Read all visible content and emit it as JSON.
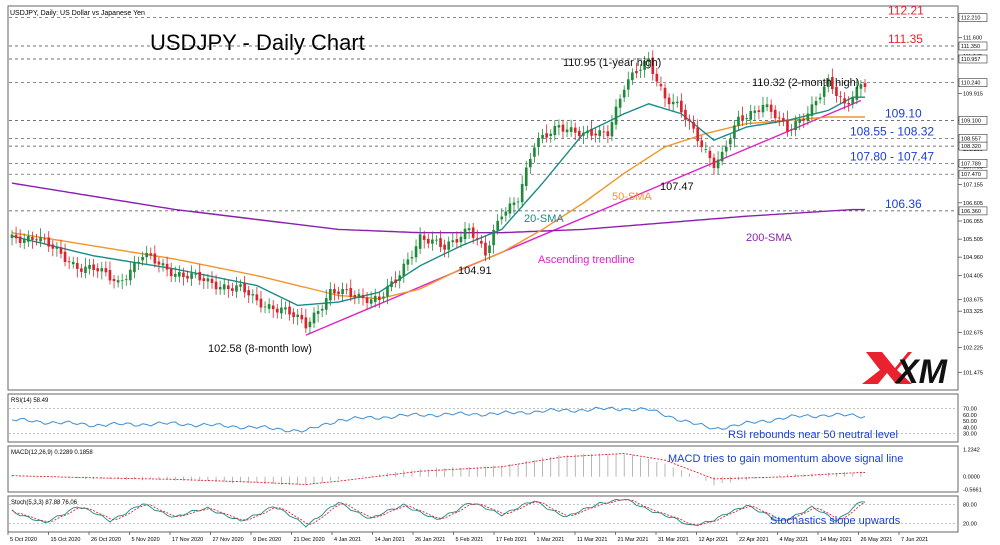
{
  "header": {
    "symbol_label": "USDJPY, Daily:  US Dollar vs Japanese Yen"
  },
  "title": "USDJPY - Daily Chart",
  "logo": {
    "text": "XM"
  },
  "chart_data": {
    "type": "line",
    "price_axis": {
      "ylim": [
        101.0,
        112.5
      ],
      "ticks": [
        "111.600",
        "111.045",
        "109.915",
        "109.100",
        "108.235",
        "107.705",
        "107.155",
        "106.605",
        "106.055",
        "105.505",
        "104.960",
        "104.405",
        "103.675",
        "103.325",
        "102.675",
        "102.225",
        "101.475"
      ],
      "highlight_ticks": [
        {
          "label": "112.210",
          "value": 112.21
        },
        {
          "label": "111.350",
          "value": 111.35
        },
        {
          "label": "110.957",
          "value": 110.957
        },
        {
          "label": "110.240",
          "value": 110.24
        },
        {
          "label": "109.100",
          "value": 109.1
        },
        {
          "label": "108.557",
          "value": 108.557
        },
        {
          "label": "108.320",
          "value": 108.32
        },
        {
          "label": "107.789",
          "value": 107.8
        },
        {
          "label": "107.470",
          "value": 107.47
        },
        {
          "label": "106.360",
          "value": 106.36
        }
      ]
    },
    "x_ticks": [
      "5 Oct 2020",
      "15 Oct 2020",
      "26 Oct 2020",
      "5 Nov 2020",
      "17 Nov 2020",
      "27 Nov 2020",
      "9 Dec 2020",
      "21 Dec 2020",
      "4 Jan 2021",
      "14 Jan 2021",
      "26 Jan 2021",
      "5 Feb 2021",
      "17 Feb 2021",
      "1 Mar 2021",
      "11 Mar 2021",
      "21 Mar 2021",
      "31 Mar 2021",
      "12 Apr 2021",
      "22 Apr 2021",
      "4 May 2021",
      "14 May 2021",
      "26 May 2021",
      "7 Jun 2021"
    ],
    "levels": [
      {
        "value": 112.21,
        "label": "112.21",
        "color": "#e8222e"
      },
      {
        "value": 111.35,
        "label": "111.35",
        "color": "#e8222e"
      },
      {
        "value": 109.1,
        "label": "109.10",
        "color": "#1a3ed6"
      },
      {
        "value": 108.55,
        "label": "108.55 - 108.32",
        "color": "#1a3ed6"
      },
      {
        "value": 107.8,
        "label": "107.80 - 107.47",
        "color": "#1a3ed6"
      },
      {
        "value": 106.36,
        "label": "106.36",
        "color": "#1a3ed6"
      }
    ],
    "annotations": [
      "110.95 (1-year high)",
      "110.32 (2-month high)",
      "107.47",
      "104.91",
      "102.58 (8-month low)",
      "20-SMA",
      "50-SMA",
      "200-SMA",
      "Ascending trendline"
    ],
    "price_keypoints": {
      "index": [
        0,
        6,
        12,
        16,
        20,
        26,
        32,
        40,
        48,
        56,
        60,
        66,
        72,
        78,
        84,
        90,
        94,
        100,
        106,
        112,
        116,
        120,
        124,
        128,
        134,
        140,
        146,
        150,
        156,
        160,
        163,
        168,
        172,
        174,
        178,
        184,
        190,
        196,
        200,
        204,
        208
      ],
      "close": [
        105.5,
        105.6,
        105.0,
        104.7,
        104.6,
        104.2,
        105.0,
        104.5,
        104.2,
        104.0,
        103.6,
        103.4,
        102.9,
        103.9,
        103.8,
        103.7,
        104.2,
        105.6,
        105.2,
        105.9,
        105.0,
        106.3,
        106.8,
        108.3,
        109.0,
        108.6,
        108.8,
        110.1,
        110.95,
        109.8,
        109.5,
        108.6,
        107.8,
        108.0,
        109.1,
        109.6,
        108.8,
        109.5,
        110.2,
        109.6,
        110.2
      ]
    },
    "sma20_keypoints": {
      "index": [
        0,
        20,
        40,
        60,
        70,
        80,
        90,
        100,
        110,
        120,
        130,
        140,
        150,
        156,
        164,
        172,
        180,
        190,
        200,
        206
      ],
      "value": [
        105.6,
        105.0,
        104.6,
        104.1,
        103.5,
        103.6,
        103.9,
        104.7,
        105.3,
        105.8,
        107.2,
        108.7,
        109.3,
        109.6,
        109.3,
        108.5,
        108.9,
        109.1,
        109.4,
        109.8
      ]
    },
    "sma50_keypoints": {
      "index": [
        0,
        20,
        40,
        60,
        80,
        90,
        100,
        110,
        120,
        130,
        140,
        150,
        160,
        170,
        180,
        190,
        200,
        206
      ],
      "value": [
        105.7,
        105.3,
        104.9,
        104.4,
        103.8,
        103.7,
        104.0,
        104.6,
        105.1,
        105.8,
        106.6,
        107.5,
        108.3,
        108.7,
        109.0,
        109.1,
        109.2,
        109.2
      ]
    },
    "sma200_keypoints": {
      "index": [
        0,
        20,
        40,
        60,
        80,
        100,
        120,
        140,
        160,
        180,
        206
      ],
      "value": [
        107.2,
        106.8,
        106.4,
        106.1,
        105.8,
        105.7,
        105.7,
        105.8,
        106.0,
        106.2,
        106.4
      ]
    },
    "trendline": {
      "from": {
        "index": 72,
        "value": 102.6
      },
      "to": {
        "index": 208,
        "value": 109.7
      }
    },
    "rsi": {
      "label": "RSI(14) 58.49",
      "ticks": [
        "70.00",
        "60.00",
        "50.00",
        "40.00",
        "30.00"
      ],
      "annotation": "RSI rebounds near 50 neutral level",
      "keypoints": {
        "index": [
          0,
          20,
          40,
          60,
          72,
          80,
          100,
          120,
          130,
          150,
          156,
          168,
          172,
          190,
          200,
          208
        ],
        "value": [
          52,
          44,
          46,
          40,
          34,
          52,
          60,
          62,
          66,
          70,
          68,
          44,
          38,
          56,
          60,
          58
        ]
      }
    },
    "macd": {
      "label": "MACD(12,26,9) 0.2289 0.1858",
      "ticks": [
        "1.2342",
        "0.0000",
        "-0.5661"
      ],
      "annotation": "MACD tries to gain momentum above signal line",
      "keypoints": {
        "index": [
          0,
          20,
          40,
          60,
          72,
          80,
          100,
          120,
          135,
          150,
          160,
          172,
          190,
          200,
          208
        ],
        "value": [
          0.05,
          -0.1,
          -0.15,
          -0.3,
          -0.4,
          -0.1,
          0.35,
          0.5,
          1.0,
          1.05,
          0.6,
          -0.35,
          0.1,
          0.15,
          0.23
        ]
      },
      "signal_keypoints": {
        "index": [
          0,
          20,
          40,
          60,
          72,
          80,
          100,
          120,
          135,
          150,
          160,
          172,
          190,
          200,
          208
        ],
        "value": [
          0.05,
          -0.05,
          -0.12,
          -0.25,
          -0.35,
          -0.2,
          0.25,
          0.45,
          0.9,
          1.05,
          0.75,
          -0.1,
          0.0,
          0.12,
          0.19
        ]
      }
    },
    "stochastics": {
      "label": "Stoch(5,3,3) 87.88 76.06",
      "ticks": [
        "80.00",
        "20.00"
      ],
      "annotation": "Stochastics slope upwards",
      "keypoints": {
        "index": [
          0,
          8,
          16,
          24,
          32,
          40,
          48,
          56,
          64,
          72,
          80,
          88,
          96,
          104,
          112,
          120,
          128,
          136,
          144,
          150,
          158,
          166,
          172,
          180,
          188,
          196,
          202,
          208
        ],
        "value": [
          60,
          20,
          75,
          30,
          80,
          40,
          70,
          25,
          75,
          15,
          85,
          35,
          80,
          30,
          85,
          50,
          90,
          40,
          85,
          95,
          55,
          15,
          30,
          80,
          25,
          70,
          30,
          88
        ]
      }
    }
  }
}
